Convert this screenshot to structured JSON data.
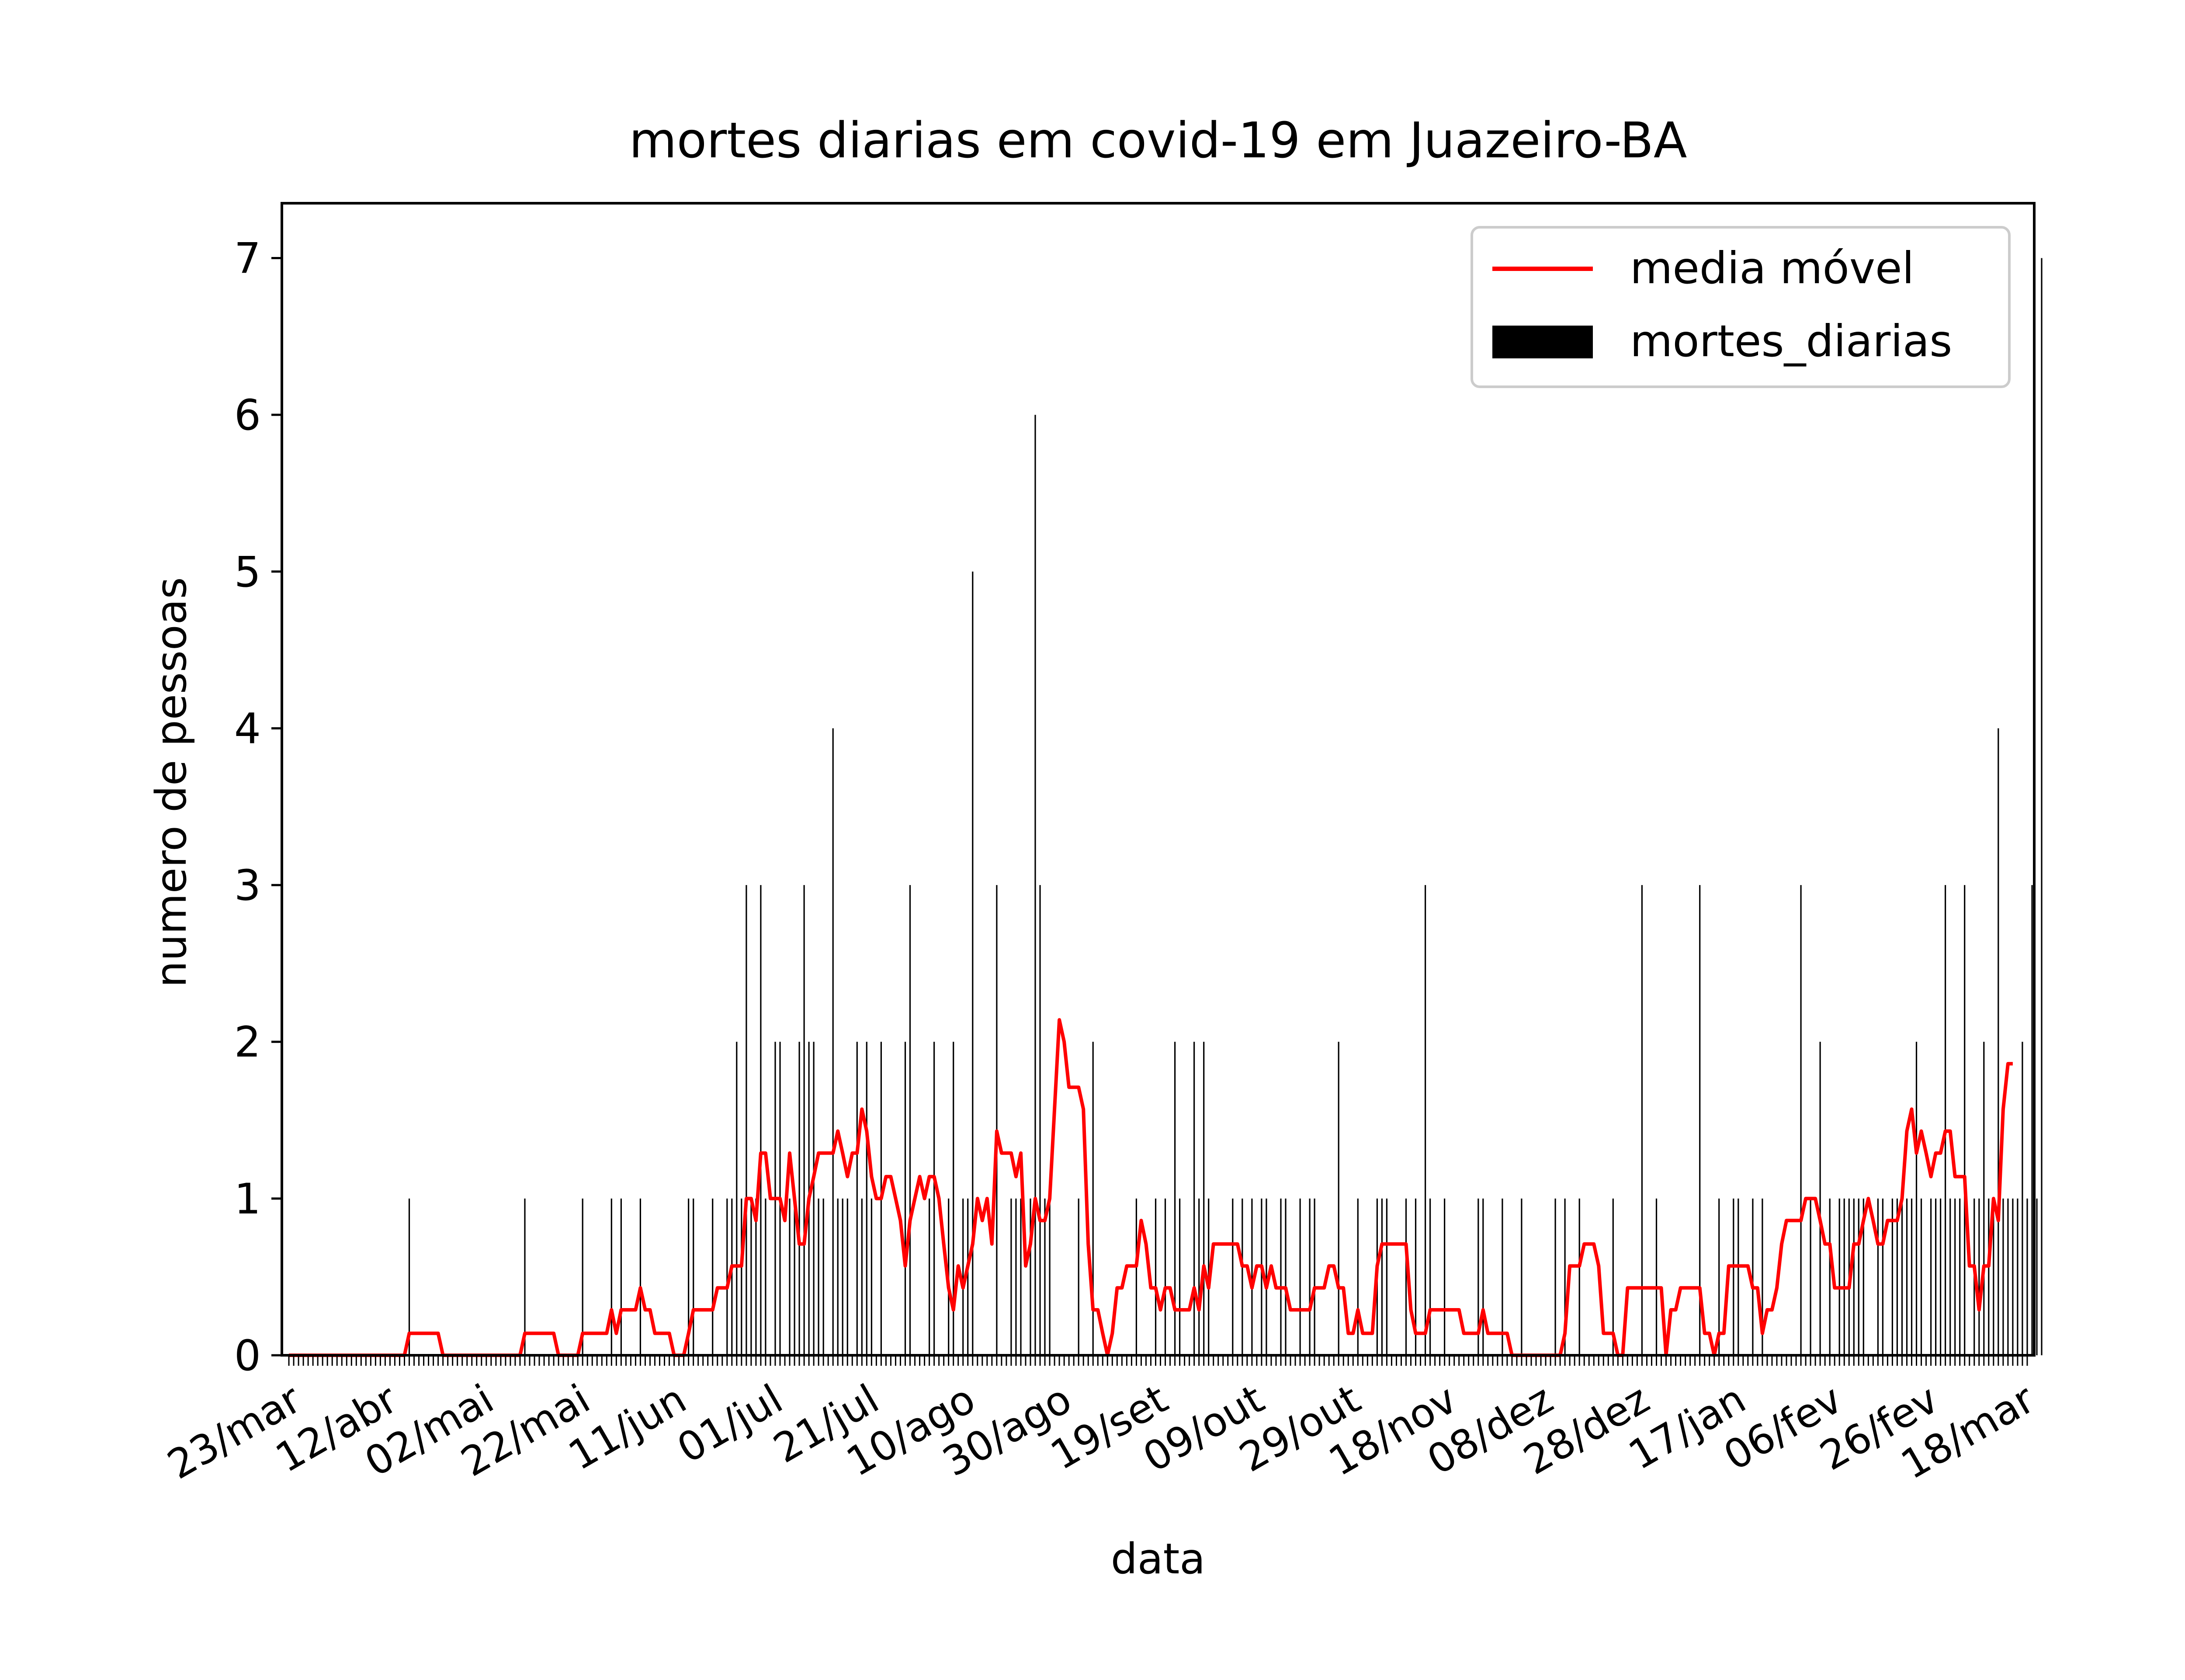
{
  "chart_data": {
    "type": "bar",
    "title": "mortes diarias em covid-19 em Juazeiro-BA",
    "xlabel": "data",
    "ylabel": "numero de pessoas",
    "ylim": [
      0,
      7.35
    ],
    "yticks": [
      0,
      1,
      2,
      3,
      4,
      5,
      6,
      7
    ],
    "x_start_label": "23/mar",
    "x_tick_labels": [
      "23/mar",
      "12/abr",
      "02/mai",
      "22/mai",
      "11/jun",
      "01/jul",
      "21/jul",
      "10/ago",
      "30/ago",
      "19/set",
      "09/out",
      "29/out",
      "18/nov",
      "08/dez",
      "28/dez",
      "17/jan",
      "06/fev",
      "26/fev",
      "18/mar"
    ],
    "x_tick_interval_days": 20,
    "day_count": 362,
    "grid": false,
    "legend_position": "top-right",
    "series": [
      {
        "name": "mortes_diarias",
        "kind": "bar",
        "color": "#000000",
        "values_by_day": {
          "25": 1,
          "49": 1,
          "61": 1,
          "67": 1,
          "69": 1,
          "73": 1,
          "83": 1,
          "84": 1,
          "88": 1,
          "91": 1,
          "92": 1,
          "93": 2,
          "94": 1,
          "95": 3,
          "96": 1,
          "97": 1,
          "98": 3,
          "99": 1,
          "101": 2,
          "102": 2,
          "104": 1,
          "105": 1,
          "106": 2,
          "107": 3,
          "108": 2,
          "109": 2,
          "110": 1,
          "111": 1,
          "113": 4,
          "114": 1,
          "115": 1,
          "116": 1,
          "118": 2,
          "119": 1,
          "120": 2,
          "121": 1,
          "123": 2,
          "128": 2,
          "129": 3,
          "133": 1,
          "134": 2,
          "137": 1,
          "138": 2,
          "140": 1,
          "141": 1,
          "142": 5,
          "147": 3,
          "150": 1,
          "151": 1,
          "152": 1,
          "154": 1,
          "155": 6,
          "156": 3,
          "157": 1,
          "158": 1,
          "164": 1,
          "167": 2,
          "176": 1,
          "180": 1,
          "182": 1,
          "184": 2,
          "185": 1,
          "188": 2,
          "189": 1,
          "190": 2,
          "191": 1,
          "196": 1,
          "198": 1,
          "200": 1,
          "202": 1,
          "203": 1,
          "206": 1,
          "207": 1,
          "210": 1,
          "212": 1,
          "213": 1,
          "218": 2,
          "222": 1,
          "226": 1,
          "227": 1,
          "228": 1,
          "232": 1,
          "234": 1,
          "236": 3,
          "237": 1,
          "240": 1,
          "247": 1,
          "248": 1,
          "252": 1,
          "256": 1,
          "263": 1,
          "265": 1,
          "268": 1,
          "275": 1,
          "281": 3,
          "284": 1,
          "293": 3,
          "297": 1,
          "300": 1,
          "301": 1,
          "304": 1,
          "306": 1,
          "314": 3,
          "316": 1,
          "318": 2,
          "320": 1,
          "322": 1,
          "323": 1,
          "324": 1,
          "325": 1,
          "326": 1,
          "327": 1,
          "330": 1,
          "331": 1,
          "333": 1,
          "334": 1,
          "335": 1,
          "336": 1,
          "337": 1,
          "338": 2,
          "339": 1,
          "341": 1,
          "342": 1,
          "343": 1,
          "344": 3,
          "345": 1,
          "346": 1,
          "347": 1,
          "348": 3,
          "350": 1,
          "351": 1,
          "352": 2,
          "353": 1,
          "354": 1,
          "355": 4,
          "356": 1,
          "357": 1,
          "358": 1,
          "359": 1,
          "360": 2,
          "361": 1,
          "362": 3,
          "363": 1,
          "364": 7
        }
      },
      {
        "name": "media móvel",
        "kind": "line",
        "color": "#ff0000",
        "points": [
          [
            0,
            0
          ],
          [
            24,
            0
          ],
          [
            25,
            0.14
          ],
          [
            31,
            0.14
          ],
          [
            32,
            0
          ],
          [
            48,
            0
          ],
          [
            49,
            0.14
          ],
          [
            55,
            0.14
          ],
          [
            56,
            0
          ],
          [
            60,
            0
          ],
          [
            61,
            0.14
          ],
          [
            66,
            0.14
          ],
          [
            67,
            0.29
          ],
          [
            68,
            0.14
          ],
          [
            69,
            0.29
          ],
          [
            72,
            0.29
          ],
          [
            73,
            0.43
          ],
          [
            74,
            0.29
          ],
          [
            75,
            0.29
          ],
          [
            76,
            0.14
          ],
          [
            79,
            0.14
          ],
          [
            80,
            0
          ],
          [
            82,
            0
          ],
          [
            83,
            0.14
          ],
          [
            84,
            0.29
          ],
          [
            88,
            0.29
          ],
          [
            89,
            0.43
          ],
          [
            91,
            0.43
          ],
          [
            92,
            0.57
          ],
          [
            94,
            0.57
          ],
          [
            95,
            1.0
          ],
          [
            96,
            1.0
          ],
          [
            97,
            0.86
          ],
          [
            98,
            1.29
          ],
          [
            99,
            1.29
          ],
          [
            100,
            1.0
          ],
          [
            102,
            1.0
          ],
          [
            103,
            0.86
          ],
          [
            104,
            1.29
          ],
          [
            105,
            1.0
          ],
          [
            106,
            0.71
          ],
          [
            107,
            0.71
          ],
          [
            108,
            1.0
          ],
          [
            109,
            1.14
          ],
          [
            110,
            1.29
          ],
          [
            113,
            1.29
          ],
          [
            114,
            1.43
          ],
          [
            115,
            1.29
          ],
          [
            116,
            1.14
          ],
          [
            117,
            1.29
          ],
          [
            118,
            1.29
          ],
          [
            119,
            1.57
          ],
          [
            120,
            1.43
          ],
          [
            121,
            1.14
          ],
          [
            122,
            1.0
          ],
          [
            123,
            1.0
          ],
          [
            124,
            1.14
          ],
          [
            125,
            1.14
          ],
          [
            126,
            1.0
          ],
          [
            127,
            0.86
          ],
          [
            128,
            0.57
          ],
          [
            129,
            0.86
          ],
          [
            130,
            1.0
          ],
          [
            131,
            1.14
          ],
          [
            132,
            1.0
          ],
          [
            133,
            1.14
          ],
          [
            134,
            1.14
          ],
          [
            135,
            1.0
          ],
          [
            136,
            0.71
          ],
          [
            137,
            0.43
          ],
          [
            138,
            0.29
          ],
          [
            139,
            0.57
          ],
          [
            140,
            0.43
          ],
          [
            141,
            0.57
          ],
          [
            142,
            0.71
          ],
          [
            143,
            1.0
          ],
          [
            144,
            0.86
          ],
          [
            145,
            1.0
          ],
          [
            146,
            0.71
          ],
          [
            147,
            1.43
          ],
          [
            148,
            1.29
          ],
          [
            149,
            1.29
          ],
          [
            150,
            1.29
          ],
          [
            151,
            1.14
          ],
          [
            152,
            1.29
          ],
          [
            153,
            0.57
          ],
          [
            154,
            0.71
          ],
          [
            155,
            1.0
          ],
          [
            156,
            0.86
          ],
          [
            157,
            0.86
          ],
          [
            158,
            1.0
          ],
          [
            159,
            1.57
          ],
          [
            160,
            2.14
          ],
          [
            161,
            2.0
          ],
          [
            162,
            1.71
          ],
          [
            164,
            1.71
          ],
          [
            165,
            1.57
          ],
          [
            166,
            0.71
          ],
          [
            167,
            0.29
          ],
          [
            168,
            0.29
          ],
          [
            169,
            0.14
          ],
          [
            170,
            0.0
          ],
          [
            171,
            0.14
          ],
          [
            172,
            0.43
          ],
          [
            173,
            0.43
          ],
          [
            174,
            0.57
          ],
          [
            176,
            0.57
          ],
          [
            177,
            0.86
          ],
          [
            178,
            0.71
          ],
          [
            179,
            0.43
          ],
          [
            180,
            0.43
          ],
          [
            181,
            0.29
          ],
          [
            182,
            0.43
          ],
          [
            183,
            0.43
          ],
          [
            184,
            0.29
          ],
          [
            187,
            0.29
          ],
          [
            188,
            0.43
          ],
          [
            189,
            0.29
          ],
          [
            190,
            0.57
          ],
          [
            191,
            0.43
          ],
          [
            192,
            0.71
          ],
          [
            197,
            0.71
          ],
          [
            198,
            0.57
          ],
          [
            199,
            0.57
          ],
          [
            200,
            0.43
          ],
          [
            201,
            0.57
          ],
          [
            202,
            0.57
          ],
          [
            203,
            0.43
          ],
          [
            204,
            0.57
          ],
          [
            205,
            0.43
          ],
          [
            206,
            0.43
          ],
          [
            207,
            0.43
          ],
          [
            208,
            0.29
          ],
          [
            212,
            0.29
          ],
          [
            213,
            0.43
          ],
          [
            215,
            0.43
          ],
          [
            216,
            0.57
          ],
          [
            217,
            0.57
          ],
          [
            218,
            0.43
          ],
          [
            219,
            0.43
          ],
          [
            220,
            0.14
          ],
          [
            221,
            0.14
          ],
          [
            222,
            0.29
          ],
          [
            223,
            0.14
          ],
          [
            225,
            0.14
          ],
          [
            226,
            0.57
          ],
          [
            227,
            0.71
          ],
          [
            232,
            0.71
          ],
          [
            233,
            0.29
          ],
          [
            234,
            0.14
          ],
          [
            236,
            0.14
          ],
          [
            237,
            0.29
          ],
          [
            243,
            0.29
          ],
          [
            244,
            0.14
          ],
          [
            247,
            0.14
          ],
          [
            248,
            0.29
          ],
          [
            249,
            0.14
          ],
          [
            253,
            0.14
          ],
          [
            254,
            0
          ],
          [
            264,
            0
          ],
          [
            265,
            0.14
          ],
          [
            266,
            0.57
          ],
          [
            268,
            0.57
          ],
          [
            269,
            0.71
          ],
          [
            271,
            0.71
          ],
          [
            272,
            0.57
          ],
          [
            273,
            0.14
          ],
          [
            275,
            0.14
          ],
          [
            276,
            0
          ],
          [
            277,
            0
          ],
          [
            278,
            0.43
          ],
          [
            285,
            0.43
          ],
          [
            286,
            0
          ],
          [
            287,
            0.29
          ],
          [
            288,
            0.29
          ],
          [
            289,
            0.43
          ],
          [
            293,
            0.43
          ],
          [
            294,
            0.14
          ],
          [
            295,
            0.14
          ],
          [
            296,
            0
          ],
          [
            297,
            0.14
          ],
          [
            298,
            0.14
          ],
          [
            299,
            0.57
          ],
          [
            303,
            0.57
          ],
          [
            304,
            0.43
          ],
          [
            305,
            0.43
          ],
          [
            306,
            0.14
          ],
          [
            307,
            0.29
          ],
          [
            308,
            0.29
          ],
          [
            309,
            0.43
          ],
          [
            310,
            0.71
          ],
          [
            311,
            0.86
          ],
          [
            314,
            0.86
          ],
          [
            315,
            1.0
          ],
          [
            317,
            1.0
          ],
          [
            318,
            0.86
          ],
          [
            319,
            0.71
          ],
          [
            320,
            0.71
          ],
          [
            321,
            0.43
          ],
          [
            322,
            0.43
          ],
          [
            324,
            0.43
          ],
          [
            325,
            0.71
          ],
          [
            326,
            0.71
          ],
          [
            327,
            0.86
          ],
          [
            328,
            1.0
          ],
          [
            329,
            0.86
          ],
          [
            330,
            0.71
          ],
          [
            331,
            0.71
          ],
          [
            332,
            0.86
          ],
          [
            334,
            0.86
          ],
          [
            335,
            1.0
          ],
          [
            336,
            1.43
          ],
          [
            337,
            1.57
          ],
          [
            338,
            1.29
          ],
          [
            339,
            1.43
          ],
          [
            340,
            1.29
          ],
          [
            341,
            1.14
          ],
          [
            342,
            1.29
          ],
          [
            343,
            1.29
          ],
          [
            344,
            1.43
          ],
          [
            345,
            1.43
          ],
          [
            346,
            1.14
          ],
          [
            347,
            1.14
          ],
          [
            348,
            1.14
          ],
          [
            349,
            0.57
          ],
          [
            350,
            0.57
          ],
          [
            351,
            0.29
          ],
          [
            352,
            0.57
          ],
          [
            353,
            0.57
          ],
          [
            354,
            1.0
          ],
          [
            355,
            0.86
          ],
          [
            356,
            1.57
          ],
          [
            357,
            1.86
          ],
          [
            358,
            1.86
          ]
        ]
      }
    ]
  }
}
